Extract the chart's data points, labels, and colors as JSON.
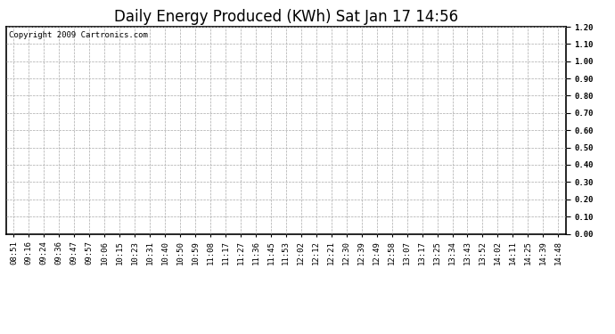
{
  "title": "Daily Energy Produced (KWh) Sat Jan 17 14:56",
  "copyright_text": "Copyright 2009 Cartronics.com",
  "ylim": [
    0.0,
    1.2
  ],
  "yticks": [
    0.0,
    0.1,
    0.2,
    0.3,
    0.4,
    0.5,
    0.6,
    0.7,
    0.8,
    0.9,
    1.0,
    1.1,
    1.2
  ],
  "x_labels": [
    "08:51",
    "09:16",
    "09:24",
    "09:36",
    "09:47",
    "09:57",
    "10:06",
    "10:15",
    "10:23",
    "10:31",
    "10:40",
    "10:50",
    "10:59",
    "11:08",
    "11:17",
    "11:27",
    "11:36",
    "11:45",
    "11:53",
    "12:02",
    "12:12",
    "12:21",
    "12:30",
    "12:39",
    "12:49",
    "12:58",
    "13:07",
    "13:17",
    "13:25",
    "13:34",
    "13:43",
    "13:52",
    "14:02",
    "14:11",
    "14:25",
    "14:39",
    "14:48"
  ],
  "background_color": "#ffffff",
  "grid_color": "#aaaaaa",
  "title_fontsize": 12,
  "tick_fontsize": 6.5,
  "copyright_fontsize": 6.5
}
